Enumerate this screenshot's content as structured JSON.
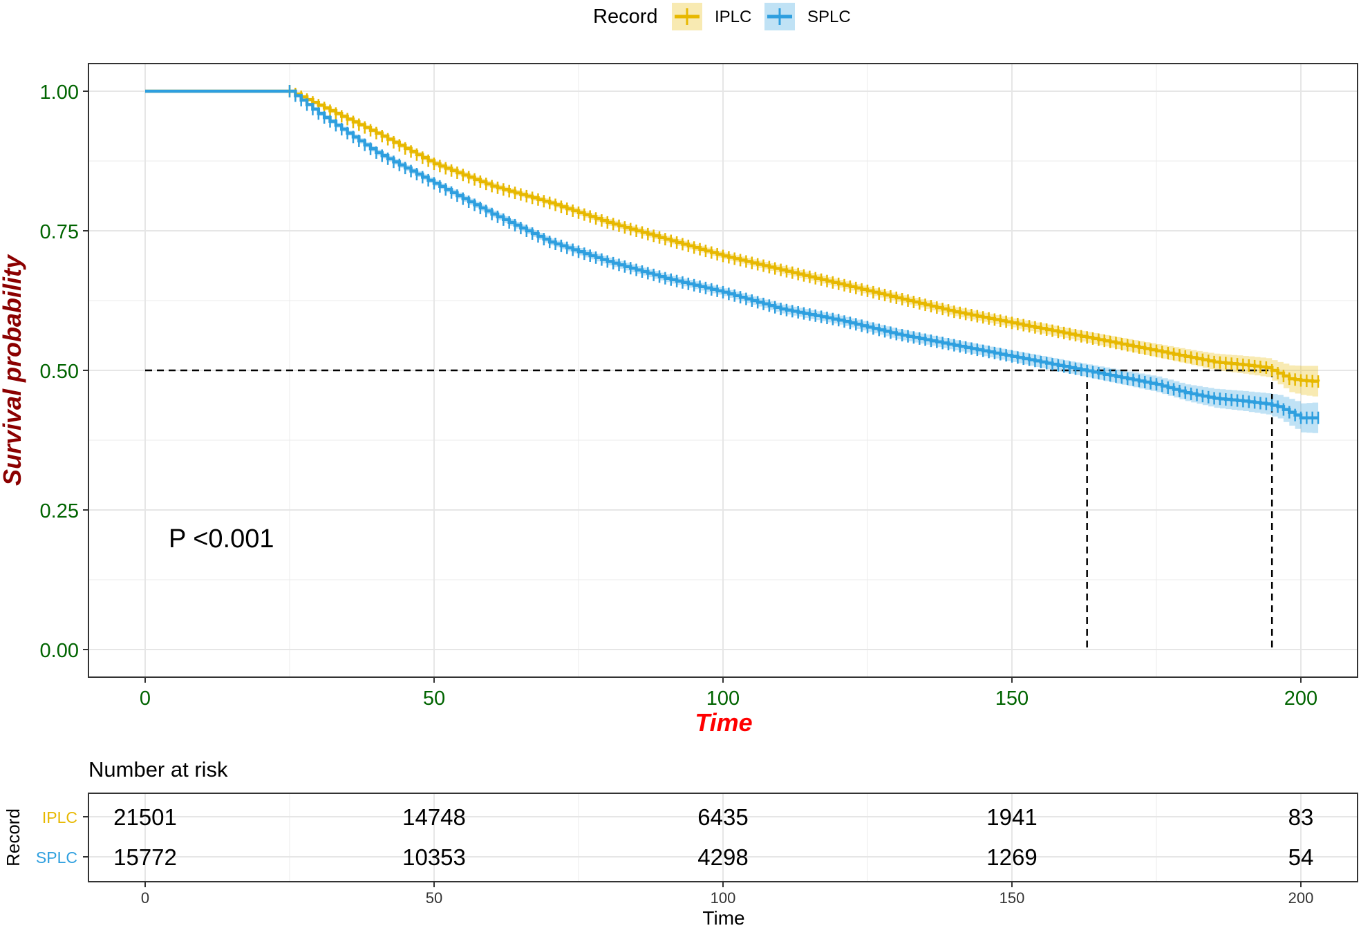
{
  "legend": {
    "title": "Record",
    "items": [
      {
        "label": "IPLC",
        "color": "#E7B800"
      },
      {
        "label": "SPLC",
        "color": "#2E9FDF"
      }
    ]
  },
  "annotation": {
    "pvalue": "P <0.001"
  },
  "risk_table": {
    "title": "Number at risk",
    "ylabel": "Record",
    "xlabel": "Time",
    "times": [
      0,
      50,
      100,
      150,
      200
    ],
    "rows": [
      {
        "label": "IPLC",
        "color": "#E7B800",
        "counts": [
          "21501",
          "14748",
          "6435",
          "1941",
          "83"
        ]
      },
      {
        "label": "SPLC",
        "color": "#2E9FDF",
        "counts": [
          "15772",
          "10353",
          "4298",
          "1269",
          "54"
        ]
      }
    ]
  },
  "chart_data": {
    "type": "line",
    "step": true,
    "title": "",
    "xlabel": "Time",
    "ylabel": "Survival probability",
    "xlim": [
      0,
      203
    ],
    "ylim": [
      0,
      1
    ],
    "xticks": [
      0,
      50,
      100,
      150,
      200
    ],
    "xtick_labels": [
      "0",
      "50",
      "100",
      "150",
      "200"
    ],
    "yticks": [
      0,
      0.25,
      0.5,
      0.75,
      1
    ],
    "ytick_labels": [
      "0.00",
      "0.25",
      "0.50",
      "0.75",
      "1.00"
    ],
    "grid": true,
    "tick_label_color": "#006400",
    "xlabel_color": "#FF0000",
    "ylabel_color": "#8B0000",
    "legend_position": "top",
    "median_reference_line": 0.5,
    "median_survival": {
      "IPLC": 195,
      "SPLC": 163
    },
    "series": [
      {
        "name": "IPLC",
        "color": "#E7B800",
        "x": [
          0,
          24,
          25,
          30,
          40,
          50,
          60,
          70,
          80,
          90,
          100,
          110,
          120,
          130,
          140,
          150,
          155,
          160,
          165,
          170,
          175,
          180,
          185,
          190,
          194,
          196,
          198,
          200,
          203
        ],
        "y": [
          1,
          1,
          1,
          0.975,
          0.925,
          0.87,
          0.83,
          0.8,
          0.765,
          0.735,
          0.705,
          0.68,
          0.655,
          0.63,
          0.605,
          0.585,
          0.575,
          0.565,
          0.555,
          0.545,
          0.535,
          0.525,
          0.515,
          0.51,
          0.505,
          0.495,
          0.485,
          0.482,
          0.48
        ],
        "ci_halfwidth": [
          0,
          0,
          0,
          0.004,
          0.004,
          0.005,
          0.005,
          0.005,
          0.006,
          0.006,
          0.006,
          0.007,
          0.007,
          0.007,
          0.008,
          0.008,
          0.009,
          0.009,
          0.01,
          0.011,
          0.012,
          0.013,
          0.015,
          0.016,
          0.017,
          0.02,
          0.024,
          0.026,
          0.028
        ]
      },
      {
        "name": "SPLC",
        "color": "#2E9FDF",
        "x": [
          0,
          24,
          25,
          30,
          40,
          50,
          60,
          70,
          80,
          90,
          100,
          110,
          120,
          130,
          140,
          150,
          155,
          160,
          165,
          170,
          175,
          180,
          185,
          190,
          194,
          196,
          198,
          200,
          203
        ],
        "y": [
          1,
          1,
          1,
          0.96,
          0.89,
          0.835,
          0.78,
          0.73,
          0.695,
          0.665,
          0.64,
          0.61,
          0.59,
          0.565,
          0.545,
          0.525,
          0.515,
          0.505,
          0.495,
          0.485,
          0.475,
          0.46,
          0.45,
          0.445,
          0.44,
          0.435,
          0.425,
          0.415,
          0.415
        ],
        "ci_halfwidth": [
          0,
          0,
          0,
          0.004,
          0.005,
          0.005,
          0.006,
          0.006,
          0.007,
          0.007,
          0.007,
          0.008,
          0.008,
          0.009,
          0.009,
          0.01,
          0.011,
          0.011,
          0.012,
          0.013,
          0.014,
          0.015,
          0.017,
          0.018,
          0.019,
          0.021,
          0.024,
          0.026,
          0.028
        ]
      }
    ]
  }
}
